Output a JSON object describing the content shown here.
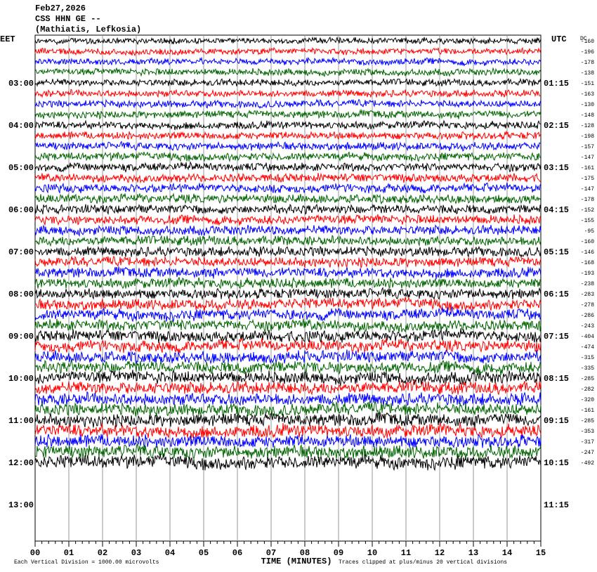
{
  "header": {
    "date": "Feb27,2026",
    "station": "CSS HHN GE --",
    "location": "(Mathiatis, Lefkosia)"
  },
  "left_axis": {
    "title": "EET",
    "labels": [
      "03:00",
      "04:00",
      "05:00",
      "06:00",
      "07:00",
      "08:00",
      "09:00",
      "10:00",
      "11:00",
      "12:00",
      "13:00"
    ]
  },
  "right_axis": {
    "title": "UTC",
    "labels": [
      "01:15",
      "02:15",
      "03:15",
      "04:15",
      "05:15",
      "06:15",
      "07:15",
      "08:15",
      "09:15",
      "10:15",
      "11:15"
    ]
  },
  "dc": {
    "title": "DC",
    "values": [
      -160,
      -196,
      -178,
      -138,
      -151,
      -163,
      -130,
      -148,
      -128,
      -198,
      -157,
      -147,
      -161,
      -175,
      -147,
      -178,
      -152,
      -155,
      -95,
      -160,
      -146,
      -168,
      -193,
      -238,
      -283,
      -278,
      -286,
      -243,
      -404,
      -474,
      -315,
      -335,
      -285,
      -282,
      -320,
      -161,
      -285,
      -353,
      -317,
      -247,
      -492
    ]
  },
  "x_axis": {
    "title": "TIME (MINUTES)",
    "labels": [
      "00",
      "01",
      "02",
      "03",
      "04",
      "05",
      "06",
      "07",
      "08",
      "09",
      "10",
      "11",
      "12",
      "13",
      "14",
      "15"
    ]
  },
  "footer": {
    "scale": "Each Vertical Division = 1000.00 microvolts",
    "clip": "Traces clipped at plus/minus 20 vertical divisions"
  }
}
